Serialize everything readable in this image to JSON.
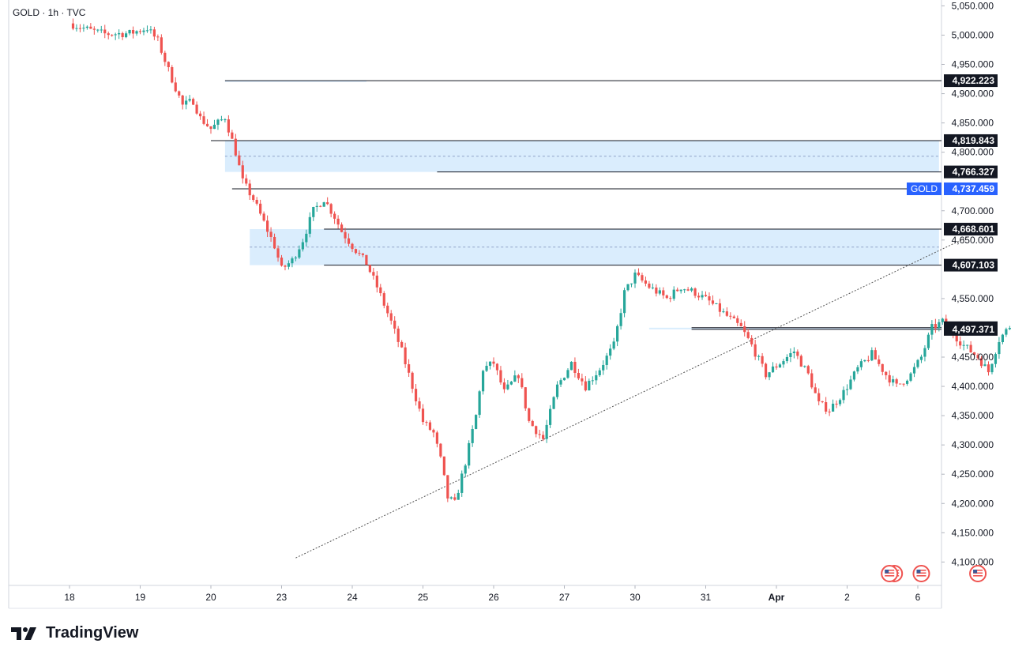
{
  "header": {
    "symbol_text": "GOLD · 1h · TVC"
  },
  "brand": {
    "name": "TradingView"
  },
  "colors": {
    "up": "#26a69a",
    "down": "#ef5350",
    "zone_fill": "#bbdefb",
    "line": "#131722",
    "axis_text": "#131722",
    "gold_tag": "#2962ff"
  },
  "chart_data": {
    "type": "candlestick",
    "symbol": "GOLD",
    "interval": "1h",
    "source": "TVC",
    "ylim": [
      4060,
      5060
    ],
    "y_ticks": [
      {
        "value": 5050,
        "label": "5,050.000"
      },
      {
        "value": 5000,
        "label": "5,000.000"
      },
      {
        "value": 4950,
        "label": "4,950.000"
      },
      {
        "value": 4900,
        "label": "4,900.000"
      },
      {
        "value": 4850,
        "label": "4,850.000"
      },
      {
        "value": 4800,
        "label": "4,800.000"
      },
      {
        "value": 4700,
        "label": "4,700.000"
      },
      {
        "value": 4650,
        "label": "4,650.000"
      },
      {
        "value": 4550,
        "label": "4,550.000"
      },
      {
        "value": 4450,
        "label": "4,450.000"
      },
      {
        "value": 4400,
        "label": "4,400.000"
      },
      {
        "value": 4350,
        "label": "4,350.000"
      },
      {
        "value": 4300,
        "label": "4,300.000"
      },
      {
        "value": 4250,
        "label": "4,250.000"
      },
      {
        "value": 4200,
        "label": "4,200.000"
      },
      {
        "value": 4150,
        "label": "4,150.000"
      },
      {
        "value": 4100,
        "label": "4,100.000"
      }
    ],
    "x_ticks": [
      "18",
      "19",
      "20",
      "23",
      "24",
      "25",
      "26",
      "27",
      "30",
      "31",
      "Apr",
      "2",
      "6"
    ],
    "price_levels": [
      {
        "value": 4922.223,
        "label": "4,922.223",
        "style": "dark",
        "from_session": 2.2
      },
      {
        "value": 4819.843,
        "label": "4,819.843",
        "style": "dark",
        "from_session": 2.0
      },
      {
        "value": 4766.327,
        "label": "4,766.327",
        "style": "dark",
        "from_session": 5.2
      },
      {
        "value": 4737.459,
        "label": "4,737.459",
        "style": "current",
        "name": "GOLD",
        "from_session": 2.3
      },
      {
        "value": 4668.601,
        "label": "4,668.601",
        "style": "dark",
        "from_session": 3.6
      },
      {
        "value": 4607.103,
        "label": "4,607.103",
        "style": "dark",
        "from_session": 3.6
      },
      {
        "value": 4500.224,
        "label": "4,500.224",
        "style": "dark",
        "from_session": 8.8
      },
      {
        "value": 4497.371,
        "label": "4,497.371",
        "style": "dark",
        "from_session": 8.8
      }
    ],
    "zones": [
      {
        "from_session": 2.2,
        "to_session": 4.2,
        "top": 4923,
        "bottom": 4920
      },
      {
        "from_session": 2.2,
        "to_session": 12.3,
        "top": 4819.843,
        "bottom": 4766.327
      },
      {
        "from_session": 2.55,
        "to_session": 12.3,
        "top": 4668.601,
        "bottom": 4607.103
      },
      {
        "from_session": 8.2,
        "to_session": 12.3,
        "top": 4500.224,
        "bottom": 4497.371
      }
    ],
    "trendline": {
      "from": {
        "session": 3.2,
        "price": 4107
      },
      "to": {
        "session": 12.7,
        "price": 4655
      }
    },
    "event_markers": [
      {
        "session": 11.6,
        "count": 2
      },
      {
        "session": 12.05,
        "count": 1
      },
      {
        "session": 12.85,
        "count": 1
      }
    ],
    "path": [
      [
        0.0,
        5020
      ],
      [
        0.3,
        5008
      ],
      [
        0.5,
        5002
      ],
      [
        0.85,
        5003
      ],
      [
        1.1,
        5012
      ],
      [
        1.25,
        4990
      ],
      [
        1.4,
        4940
      ],
      [
        1.6,
        4880
      ],
      [
        1.75,
        4888
      ],
      [
        1.85,
        4858
      ],
      [
        2.0,
        4840
      ],
      [
        2.2,
        4860
      ],
      [
        2.35,
        4800
      ],
      [
        2.45,
        4750
      ],
      [
        2.6,
        4720
      ],
      [
        2.75,
        4680
      ],
      [
        2.9,
        4640
      ],
      [
        3.0,
        4600
      ],
      [
        3.15,
        4615
      ],
      [
        3.3,
        4650
      ],
      [
        3.45,
        4700
      ],
      [
        3.6,
        4720
      ],
      [
        3.75,
        4690
      ],
      [
        3.85,
        4665
      ],
      [
        4.0,
        4640
      ],
      [
        4.2,
        4610
      ],
      [
        4.35,
        4570
      ],
      [
        4.55,
        4510
      ],
      [
        4.7,
        4460
      ],
      [
        4.85,
        4400
      ],
      [
        5.0,
        4340
      ],
      [
        5.15,
        4320
      ],
      [
        5.25,
        4275
      ],
      [
        5.35,
        4210
      ],
      [
        5.45,
        4200
      ],
      [
        5.6,
        4270
      ],
      [
        5.75,
        4350
      ],
      [
        5.85,
        4430
      ],
      [
        6.0,
        4440
      ],
      [
        6.15,
        4390
      ],
      [
        6.35,
        4420
      ],
      [
        6.5,
        4340
      ],
      [
        6.7,
        4310
      ],
      [
        6.9,
        4400
      ],
      [
        7.1,
        4440
      ],
      [
        7.3,
        4400
      ],
      [
        7.5,
        4430
      ],
      [
        7.7,
        4470
      ],
      [
        7.85,
        4560
      ],
      [
        8.0,
        4590
      ],
      [
        8.2,
        4570
      ],
      [
        8.45,
        4550
      ],
      [
        8.65,
        4570
      ],
      [
        8.85,
        4560
      ],
      [
        9.05,
        4545
      ],
      [
        9.25,
        4525
      ],
      [
        9.5,
        4500
      ],
      [
        9.65,
        4470
      ],
      [
        9.85,
        4420
      ],
      [
        10.05,
        4440
      ],
      [
        10.25,
        4460
      ],
      [
        10.45,
        4420
      ],
      [
        10.6,
        4370
      ],
      [
        10.75,
        4360
      ],
      [
        10.95,
        4390
      ],
      [
        11.15,
        4430
      ],
      [
        11.35,
        4455
      ],
      [
        11.55,
        4420
      ],
      [
        11.7,
        4400
      ],
      [
        11.9,
        4420
      ],
      [
        12.05,
        4450
      ],
      [
        12.2,
        4500
      ],
      [
        12.35,
        4510
      ],
      [
        12.5,
        4490
      ],
      [
        12.65,
        4470
      ],
      [
        12.85,
        4450
      ],
      [
        13.0,
        4425
      ],
      [
        13.15,
        4480
      ],
      [
        13.35,
        4510
      ],
      [
        13.55,
        4535
      ],
      [
        13.75,
        4550
      ],
      [
        13.95,
        4540
      ],
      [
        14.1,
        4520
      ],
      [
        14.25,
        4495
      ],
      [
        14.4,
        4500
      ],
      [
        14.5,
        4560
      ],
      [
        14.6,
        4610
      ],
      [
        14.75,
        4580
      ],
      [
        14.95,
        4555
      ],
      [
        15.15,
        4545
      ],
      [
        15.35,
        4565
      ],
      [
        15.5,
        4600
      ],
      [
        15.65,
        4630
      ],
      [
        15.8,
        4680
      ],
      [
        15.95,
        4700
      ],
      [
        16.1,
        4705
      ],
      [
        16.2,
        4690
      ],
      [
        16.35,
        4680
      ],
      [
        16.45,
        4710
      ],
      [
        16.6,
        4735
      ],
      [
        16.75,
        4715
      ],
      [
        16.95,
        4730
      ],
      [
        17.0,
        4737
      ]
    ]
  }
}
